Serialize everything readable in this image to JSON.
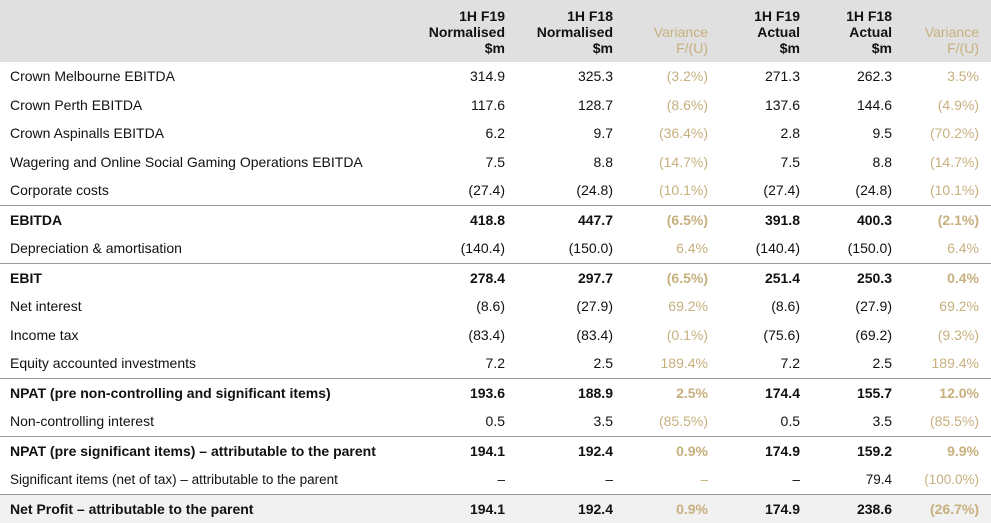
{
  "headers": [
    {
      "lines": [
        "1H F19",
        "Normalised",
        "$m"
      ],
      "variance": false
    },
    {
      "lines": [
        "1H F18",
        "Normalised",
        "$m"
      ],
      "variance": false
    },
    {
      "lines": [
        "Variance",
        "F/(U)"
      ],
      "variance": true
    },
    {
      "lines": [
        "1H F19",
        "Actual",
        "$m"
      ],
      "variance": false
    },
    {
      "lines": [
        "1H F18",
        "Actual",
        "$m"
      ],
      "variance": false
    },
    {
      "lines": [
        "Variance",
        "F/(U)"
      ],
      "variance": true
    }
  ],
  "rows": [
    {
      "label": "Crown Melbourne EBITDA",
      "values": [
        "314.9",
        "325.3",
        "(3.2%)",
        "271.3",
        "262.3",
        "3.5%"
      ],
      "style": "normal"
    },
    {
      "label": "Crown Perth EBITDA",
      "values": [
        "117.6",
        "128.7",
        "(8.6%)",
        "137.6",
        "144.6",
        "(4.9%)"
      ],
      "style": "normal"
    },
    {
      "label": "Crown Aspinalls EBITDA",
      "values": [
        "6.2",
        "9.7",
        "(36.4%)",
        "2.8",
        "9.5",
        "(70.2%)"
      ],
      "style": "normal"
    },
    {
      "label": "Wagering and Online Social Gaming Operations EBITDA",
      "values": [
        "7.5",
        "8.8",
        "(14.7%)",
        "7.5",
        "8.8",
        "(14.7%)"
      ],
      "style": "normal"
    },
    {
      "label": "Corporate costs",
      "values": [
        "(27.4)",
        "(24.8)",
        "(10.1%)",
        "(27.4)",
        "(24.8)",
        "(10.1%)"
      ],
      "style": "normal"
    },
    {
      "label": "EBITDA",
      "values": [
        "418.8",
        "447.7",
        "(6.5%)",
        "391.8",
        "400.3",
        "(2.1%)"
      ],
      "style": "subtotal"
    },
    {
      "label": "Depreciation & amortisation",
      "values": [
        "(140.4)",
        "(150.0)",
        "6.4%",
        "(140.4)",
        "(150.0)",
        "6.4%"
      ],
      "style": "normal"
    },
    {
      "label": "EBIT",
      "values": [
        "278.4",
        "297.7",
        "(6.5%)",
        "251.4",
        "250.3",
        "0.4%"
      ],
      "style": "subtotal"
    },
    {
      "label": "Net interest",
      "values": [
        "(8.6)",
        "(27.9)",
        "69.2%",
        "(8.6)",
        "(27.9)",
        "69.2%"
      ],
      "style": "normal"
    },
    {
      "label": "Income tax",
      "values": [
        "(83.4)",
        "(83.4)",
        "(0.1%)",
        "(75.6)",
        "(69.2)",
        "(9.3%)"
      ],
      "style": "normal"
    },
    {
      "label": "Equity accounted investments",
      "values": [
        "7.2",
        "2.5",
        "189.4%",
        "7.2",
        "2.5",
        "189.4%"
      ],
      "style": "normal"
    },
    {
      "label": "NPAT (pre non-controlling and significant items)",
      "values": [
        "193.6",
        "188.9",
        "2.5%",
        "174.4",
        "155.7",
        "12.0%"
      ],
      "style": "subtotal"
    },
    {
      "label": "Non-controlling interest",
      "values": [
        "0.5",
        "3.5",
        "(85.5%)",
        "0.5",
        "3.5",
        "(85.5%)"
      ],
      "style": "normal"
    },
    {
      "label": "NPAT (pre significant items) – attributable to the parent",
      "values": [
        "194.1",
        "192.4",
        "0.9%",
        "174.9",
        "159.2",
        "9.9%"
      ],
      "style": "subtotal"
    },
    {
      "label": "Significant items (net of tax) – attributable to the parent",
      "values": [
        "–",
        "–",
        "–",
        "–",
        "79.4",
        "(100.0%)"
      ],
      "style": "small"
    },
    {
      "label": "Net Profit – attributable to the parent",
      "values": [
        "194.1",
        "192.4",
        "0.9%",
        "174.9",
        "238.6",
        "(26.7%)"
      ],
      "style": "total"
    }
  ],
  "colors": {
    "variance": "#c7b07e",
    "header_bg": "#e0e0e0",
    "total_bg": "#f1f1f1"
  }
}
